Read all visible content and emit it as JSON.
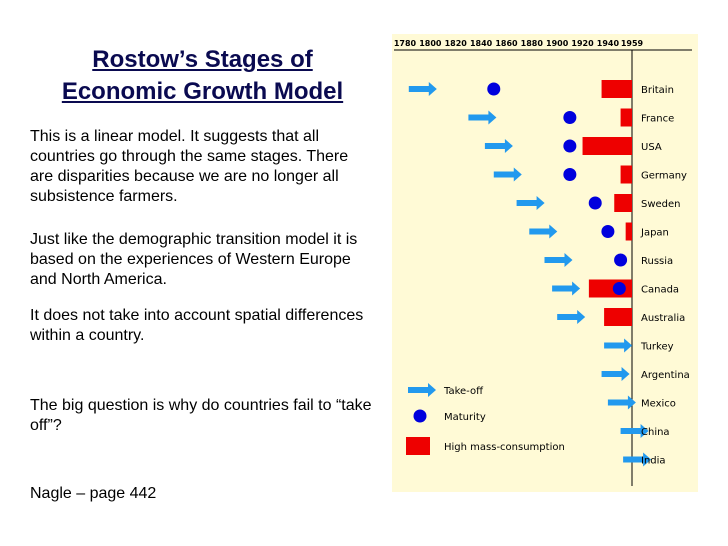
{
  "title": {
    "line1": "Rostow’s Stages of",
    "line2": "Economic Growth Model"
  },
  "paragraphs": {
    "p1": "This is a linear model. It suggests that all countries go through the same stages. There are disparities because we are no longer all subsistence farmers.",
    "p2": "Just like the demographic transition model it is based on the experiences of Western Europe and North America.",
    "p3": "It does not take into account spatial differences within a country.",
    "p4": "The big question is why do countries fail to “take off”?",
    "p5": "Nagle – page 442"
  },
  "colors": {
    "takeoff": "#2299ee",
    "maturity": "#0000dd",
    "consumption": "#ee0000",
    "background": "#fffad6"
  },
  "chart_data": {
    "type": "timeline",
    "years": [
      "1780",
      "1800",
      "1820",
      "1840",
      "1860",
      "1880",
      "1900",
      "1920",
      "1940",
      "1959"
    ],
    "countries": [
      {
        "name": "Britain",
        "takeoff": 1783,
        "maturity": 1850,
        "consumption": [
          1935,
          1959
        ]
      },
      {
        "name": "France",
        "takeoff": 1830,
        "maturity": 1910,
        "consumption": [
          1950,
          1959
        ]
      },
      {
        "name": "USA",
        "takeoff": 1843,
        "maturity": 1910,
        "consumption": [
          1920,
          1959
        ]
      },
      {
        "name": "Germany",
        "takeoff": 1850,
        "maturity": 1910,
        "consumption": [
          1950,
          1959
        ]
      },
      {
        "name": "Sweden",
        "takeoff": 1868,
        "maturity": 1930,
        "consumption": [
          1945,
          1959
        ]
      },
      {
        "name": "Japan",
        "takeoff": 1878,
        "maturity": 1940,
        "consumption": [
          1954,
          1959
        ]
      },
      {
        "name": "Russia",
        "takeoff": 1890,
        "maturity": 1950,
        "consumption": null
      },
      {
        "name": "Canada",
        "takeoff": 1896,
        "maturity": 1949,
        "consumption": [
          1925,
          1959
        ]
      },
      {
        "name": "Australia",
        "takeoff": 1900,
        "maturity": null,
        "consumption": [
          1937,
          1959
        ]
      },
      {
        "name": "Turkey",
        "takeoff": 1937,
        "maturity": null,
        "consumption": null
      },
      {
        "name": "Argentina",
        "takeoff": 1935,
        "maturity": null,
        "consumption": null
      },
      {
        "name": "Mexico",
        "takeoff": 1940,
        "maturity": null,
        "consumption": null
      },
      {
        "name": "China",
        "takeoff": 1950,
        "maturity": null,
        "consumption": null
      },
      {
        "name": "India",
        "takeoff": 1952,
        "maturity": null,
        "consumption": null
      }
    ],
    "legend": {
      "takeoff": "Take-off",
      "maturity": "Maturity",
      "consumption": "High mass-consumption"
    }
  }
}
